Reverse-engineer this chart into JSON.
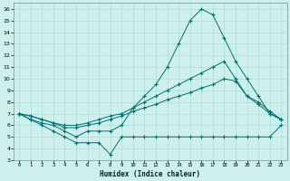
{
  "xlabel": "Humidex (Indice chaleur)",
  "xlim": [
    0,
    23
  ],
  "ylim": [
    3,
    16
  ],
  "xticks": [
    0,
    1,
    2,
    3,
    4,
    5,
    6,
    7,
    8,
    9,
    10,
    11,
    12,
    13,
    14,
    15,
    16,
    17,
    18,
    19,
    20,
    21,
    22,
    23
  ],
  "yticks": [
    3,
    4,
    5,
    6,
    7,
    8,
    9,
    10,
    11,
    12,
    13,
    14,
    15,
    16
  ],
  "line_color": "#007070",
  "bg_color": "#cef0ec",
  "grid_color": "#a8d8d4",
  "lines": [
    {
      "x": [
        0,
        1,
        2,
        3,
        4,
        5,
        6,
        7,
        8,
        9,
        10,
        11,
        12,
        13,
        14,
        15,
        16,
        17,
        18,
        19,
        20,
        21,
        22,
        23
      ],
      "y": [
        7.0,
        6.5,
        6.0,
        5.5,
        5.0,
        4.5,
        4.5,
        4.5,
        3.5,
        5.0,
        5.0,
        5.0,
        5.0,
        5.0,
        5.0,
        5.0,
        5.0,
        5.0,
        5.0,
        5.0,
        5.0,
        5.0,
        5.0,
        6.0
      ]
    },
    {
      "x": [
        0,
        1,
        2,
        3,
        4,
        5,
        6,
        7,
        8,
        9,
        10,
        11,
        12,
        13,
        14,
        15,
        16,
        17,
        18,
        19,
        20,
        21,
        22,
        23
      ],
      "y": [
        7.0,
        6.5,
        6.2,
        6.0,
        5.5,
        5.0,
        5.5,
        5.5,
        5.5,
        6.0,
        7.5,
        8.5,
        9.5,
        11.0,
        13.0,
        15.0,
        16.0,
        15.5,
        13.5,
        11.5,
        10.0,
        8.5,
        7.0,
        6.5
      ]
    },
    {
      "x": [
        0,
        1,
        2,
        3,
        4,
        5,
        6,
        7,
        8,
        9,
        10,
        11,
        12,
        13,
        14,
        15,
        16,
        17,
        18,
        19,
        20,
        21,
        22,
        23
      ],
      "y": [
        7.0,
        6.8,
        6.5,
        6.2,
        6.0,
        6.0,
        6.2,
        6.5,
        6.8,
        7.0,
        7.5,
        8.0,
        8.5,
        9.0,
        9.5,
        10.0,
        10.5,
        11.0,
        11.5,
        10.0,
        8.5,
        8.0,
        7.2,
        6.5
      ]
    },
    {
      "x": [
        0,
        1,
        2,
        3,
        4,
        5,
        6,
        7,
        8,
        9,
        10,
        11,
        12,
        13,
        14,
        15,
        16,
        17,
        18,
        19,
        20,
        21,
        22,
        23
      ],
      "y": [
        7.0,
        6.8,
        6.5,
        6.2,
        5.8,
        5.8,
        6.0,
        6.2,
        6.5,
        6.8,
        7.2,
        7.5,
        7.8,
        8.2,
        8.5,
        8.8,
        9.2,
        9.5,
        10.0,
        9.8,
        8.5,
        7.8,
        7.0,
        6.5
      ]
    }
  ]
}
